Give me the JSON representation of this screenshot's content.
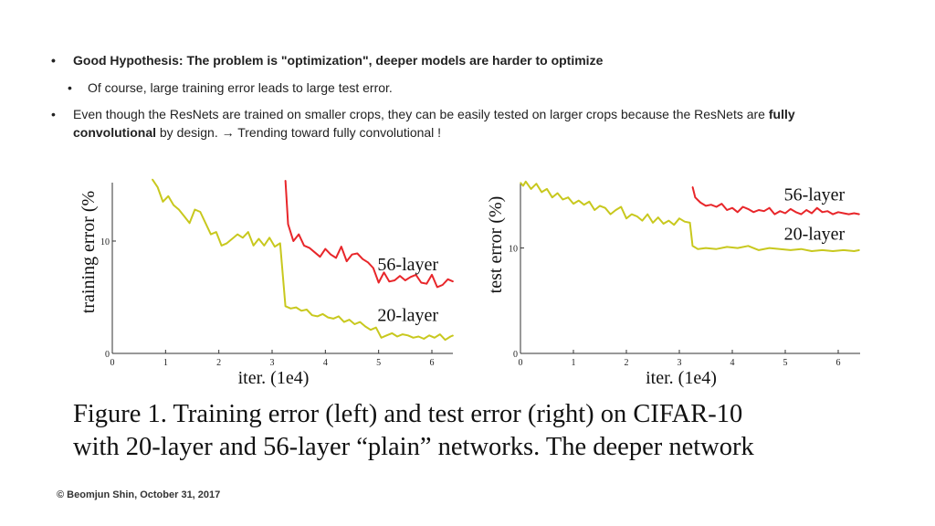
{
  "slide": {
    "bullets": [
      {
        "text": "Good Hypothesis: The problem is \"optimization\", deeper models are harder to optimize"
      },
      {
        "text": "Of course, large training error leads to large test error."
      },
      {
        "text_before": "Even though the ResNets are trained on smaller crops, they can be easily tested on larger crops because the ResNets are ",
        "bold": "fully convolutional",
        "text_after": " by design. → Trending toward fully convolutional !"
      }
    ],
    "bullet_glyph": "•",
    "caption_line1": "Figure 1. Training error (left) and test error (right) on CIFAR-10",
    "caption_line2": "with 20-layer and 56-layer “plain” networks. The deeper network",
    "footer": "© Beomjun Shin, October 31, 2017"
  },
  "chart_data": [
    {
      "type": "line",
      "xlabel": "iter. (1e4)",
      "ylabel": "training error (%",
      "xlim": [
        0,
        6.4
      ],
      "ylim": [
        0,
        15
      ],
      "x_ticks": [
        "0",
        "1",
        "2",
        "3",
        "4",
        "5",
        "6"
      ],
      "y_ticks": [
        "0",
        "10"
      ],
      "colors": {
        "56-layer": "#e8262a",
        "20-layer": "#c8c81e"
      },
      "series": [
        {
          "name": "56-layer",
          "label_at": [
            5.55,
            7.4
          ],
          "x": [
            3.25,
            3.3,
            3.4,
            3.5,
            3.6,
            3.7,
            3.8,
            3.9,
            4.0,
            4.1,
            4.2,
            4.3,
            4.4,
            4.5,
            4.6,
            4.7,
            4.8,
            4.9,
            5.0,
            5.1,
            5.2,
            5.3,
            5.4,
            5.5,
            5.6,
            5.7,
            5.8,
            5.9,
            6.0,
            6.1,
            6.2,
            6.3,
            6.4
          ],
          "values": [
            15.4,
            11.5,
            10.0,
            10.6,
            9.6,
            9.4,
            9.0,
            8.6,
            9.3,
            8.8,
            8.5,
            9.5,
            8.2,
            8.8,
            8.9,
            8.4,
            8.1,
            7.6,
            6.3,
            7.2,
            6.4,
            6.5,
            6.9,
            6.5,
            6.8,
            7.0,
            6.3,
            6.2,
            7.0,
            5.9,
            6.1,
            6.6,
            6.4
          ]
        },
        {
          "name": "20-layer",
          "label_at": [
            5.55,
            2.9
          ],
          "x": [
            0.75,
            0.85,
            0.95,
            1.05,
            1.15,
            1.25,
            1.35,
            1.45,
            1.55,
            1.65,
            1.75,
            1.85,
            1.95,
            2.05,
            2.15,
            2.25,
            2.35,
            2.45,
            2.55,
            2.65,
            2.75,
            2.85,
            2.95,
            3.05,
            3.15,
            3.25,
            3.35,
            3.45,
            3.55,
            3.65,
            3.75,
            3.85,
            3.95,
            4.05,
            4.15,
            4.25,
            4.35,
            4.45,
            4.55,
            4.65,
            4.75,
            4.85,
            4.95,
            5.05,
            5.15,
            5.25,
            5.35,
            5.45,
            5.55,
            5.65,
            5.75,
            5.85,
            5.95,
            6.05,
            6.15,
            6.25,
            6.35,
            6.4
          ],
          "values": [
            15.5,
            14.8,
            13.5,
            14.0,
            13.2,
            12.8,
            12.2,
            11.6,
            12.8,
            12.6,
            11.6,
            10.6,
            10.8,
            9.6,
            9.8,
            10.2,
            10.6,
            10.3,
            10.8,
            9.6,
            10.2,
            9.6,
            10.3,
            9.5,
            9.8,
            4.2,
            4.0,
            4.1,
            3.8,
            3.9,
            3.4,
            3.3,
            3.5,
            3.2,
            3.1,
            3.3,
            2.8,
            3.0,
            2.6,
            2.8,
            2.4,
            2.1,
            2.3,
            1.4,
            1.6,
            1.8,
            1.5,
            1.7,
            1.6,
            1.4,
            1.5,
            1.3,
            1.6,
            1.4,
            1.7,
            1.2,
            1.5,
            1.6
          ]
        }
      ]
    },
    {
      "type": "line",
      "xlabel": "iter. (1e4)",
      "ylabel": "test error (%)",
      "xlim": [
        0,
        6.4
      ],
      "ylim": [
        0,
        16
      ],
      "x_ticks": [
        "0",
        "1",
        "2",
        "3",
        "4",
        "5",
        "6"
      ],
      "y_ticks": [
        "0",
        "10"
      ],
      "colors": {
        "56-layer": "#e8262a",
        "20-layer": "#c8c81e"
      },
      "series": [
        {
          "name": "56-layer",
          "label_at": [
            5.55,
            14.5
          ],
          "x": [
            3.25,
            3.3,
            3.4,
            3.5,
            3.6,
            3.7,
            3.8,
            3.9,
            4.0,
            4.1,
            4.2,
            4.3,
            4.4,
            4.5,
            4.6,
            4.7,
            4.8,
            4.9,
            5.0,
            5.1,
            5.2,
            5.3,
            5.4,
            5.5,
            5.6,
            5.7,
            5.8,
            5.9,
            6.0,
            6.1,
            6.2,
            6.3,
            6.4
          ],
          "values": [
            15.8,
            14.8,
            14.3,
            14.0,
            14.1,
            13.9,
            14.2,
            13.6,
            13.8,
            13.4,
            13.9,
            13.7,
            13.4,
            13.6,
            13.5,
            13.8,
            13.2,
            13.5,
            13.3,
            13.7,
            13.4,
            13.2,
            13.6,
            13.3,
            13.8,
            13.4,
            13.5,
            13.2,
            13.4,
            13.3,
            13.2,
            13.3,
            13.2
          ]
        },
        {
          "name": "20-layer",
          "label_at": [
            5.55,
            10.8
          ],
          "x": [
            0.0,
            0.05,
            0.1,
            0.2,
            0.3,
            0.4,
            0.5,
            0.6,
            0.7,
            0.8,
            0.9,
            1.0,
            1.1,
            1.2,
            1.3,
            1.4,
            1.5,
            1.6,
            1.7,
            1.8,
            1.9,
            2.0,
            2.1,
            2.2,
            2.3,
            2.4,
            2.5,
            2.6,
            2.7,
            2.8,
            2.9,
            3.0,
            3.1,
            3.2,
            3.25,
            3.35,
            3.5,
            3.7,
            3.9,
            4.1,
            4.3,
            4.5,
            4.7,
            4.9,
            5.1,
            5.3,
            5.5,
            5.7,
            5.9,
            6.1,
            6.3,
            6.4
          ],
          "values": [
            16.2,
            15.9,
            16.3,
            15.6,
            16.1,
            15.3,
            15.6,
            14.8,
            15.2,
            14.6,
            14.8,
            14.2,
            14.5,
            14.1,
            14.4,
            13.6,
            14.0,
            13.8,
            13.2,
            13.6,
            13.9,
            12.8,
            13.2,
            13.0,
            12.6,
            13.2,
            12.4,
            12.9,
            12.3,
            12.6,
            12.2,
            12.8,
            12.5,
            12.4,
            10.2,
            9.9,
            10.0,
            9.9,
            10.1,
            10.0,
            10.2,
            9.8,
            10.0,
            9.9,
            9.8,
            9.9,
            9.7,
            9.8,
            9.7,
            9.8,
            9.7,
            9.8
          ]
        }
      ]
    }
  ]
}
